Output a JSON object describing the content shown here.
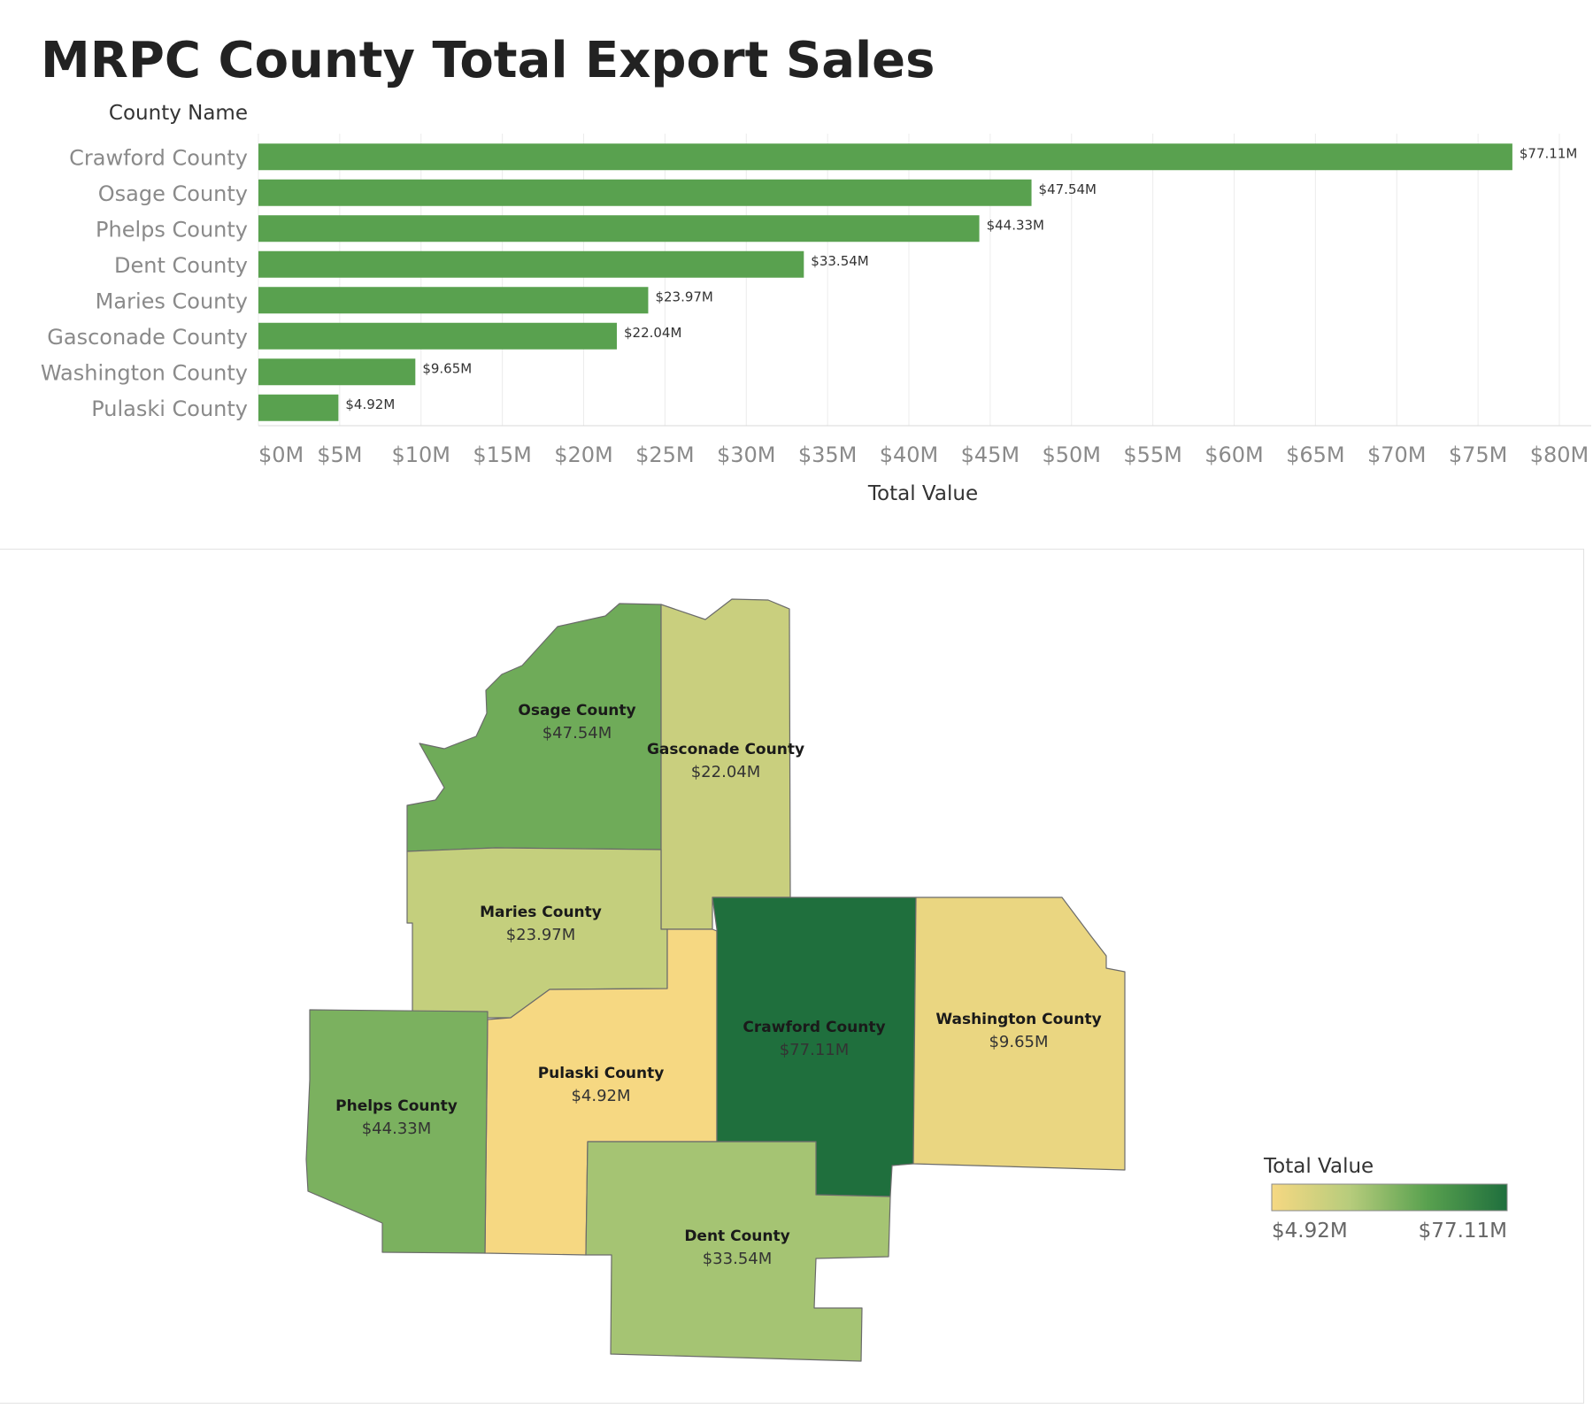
{
  "title": "MRPC County Total Export Sales",
  "chart_data": [
    {
      "type": "bar",
      "orientation": "horizontal",
      "ylabel": "County Name",
      "xlabel": "Total Value",
      "categories": [
        "Crawford County",
        "Osage County",
        "Phelps County",
        "Dent County",
        "Maries County",
        "Gasconade County",
        "Washington County",
        "Pulaski County"
      ],
      "values": [
        77.11,
        47.54,
        44.33,
        33.54,
        23.97,
        22.04,
        9.65,
        4.92
      ],
      "value_labels": [
        "$77.11M",
        "$47.54M",
        "$44.33M",
        "$33.54M",
        "$23.97M",
        "$22.04M",
        "$9.65M",
        "$4.92M"
      ],
      "unit": "M USD",
      "xlim": [
        0,
        80
      ],
      "ticks": [
        0,
        5,
        10,
        15,
        20,
        25,
        30,
        35,
        40,
        45,
        50,
        55,
        60,
        65,
        70,
        75,
        80
      ],
      "tick_labels": [
        "$0M",
        "$5M",
        "$10M",
        "$15M",
        "$20M",
        "$25M",
        "$30M",
        "$35M",
        "$40M",
        "$45M",
        "$50M",
        "$55M",
        "$60M",
        "$65M",
        "$70M",
        "$75M",
        "$80M"
      ],
      "grid": "vertical",
      "bar_color": "#59a14f"
    },
    {
      "type": "heatmap",
      "kind": "choropleth map",
      "regions": [
        {
          "name": "Osage County",
          "value": 47.54,
          "label": "$47.54M"
        },
        {
          "name": "Gasconade County",
          "value": 22.04,
          "label": "$22.04M"
        },
        {
          "name": "Maries County",
          "value": 23.97,
          "label": "$23.97M"
        },
        {
          "name": "Pulaski County",
          "value": 4.92,
          "label": "$4.92M"
        },
        {
          "name": "Phelps County",
          "value": 44.33,
          "label": "$44.33M"
        },
        {
          "name": "Crawford County",
          "value": 77.11,
          "label": "$77.11M"
        },
        {
          "name": "Washington County",
          "value": 9.65,
          "label": "$9.65M"
        },
        {
          "name": "Dent County",
          "value": 33.54,
          "label": "$33.54M"
        }
      ],
      "legend": {
        "title": "Total Value",
        "min_label": "$4.92M",
        "max_label": "$77.11M",
        "min": 4.92,
        "max": 77.11,
        "colors": [
          "#f6d882",
          "#b7cc7c",
          "#59a14f",
          "#1f6f3d"
        ],
        "placement": "bottom-right"
      }
    }
  ]
}
